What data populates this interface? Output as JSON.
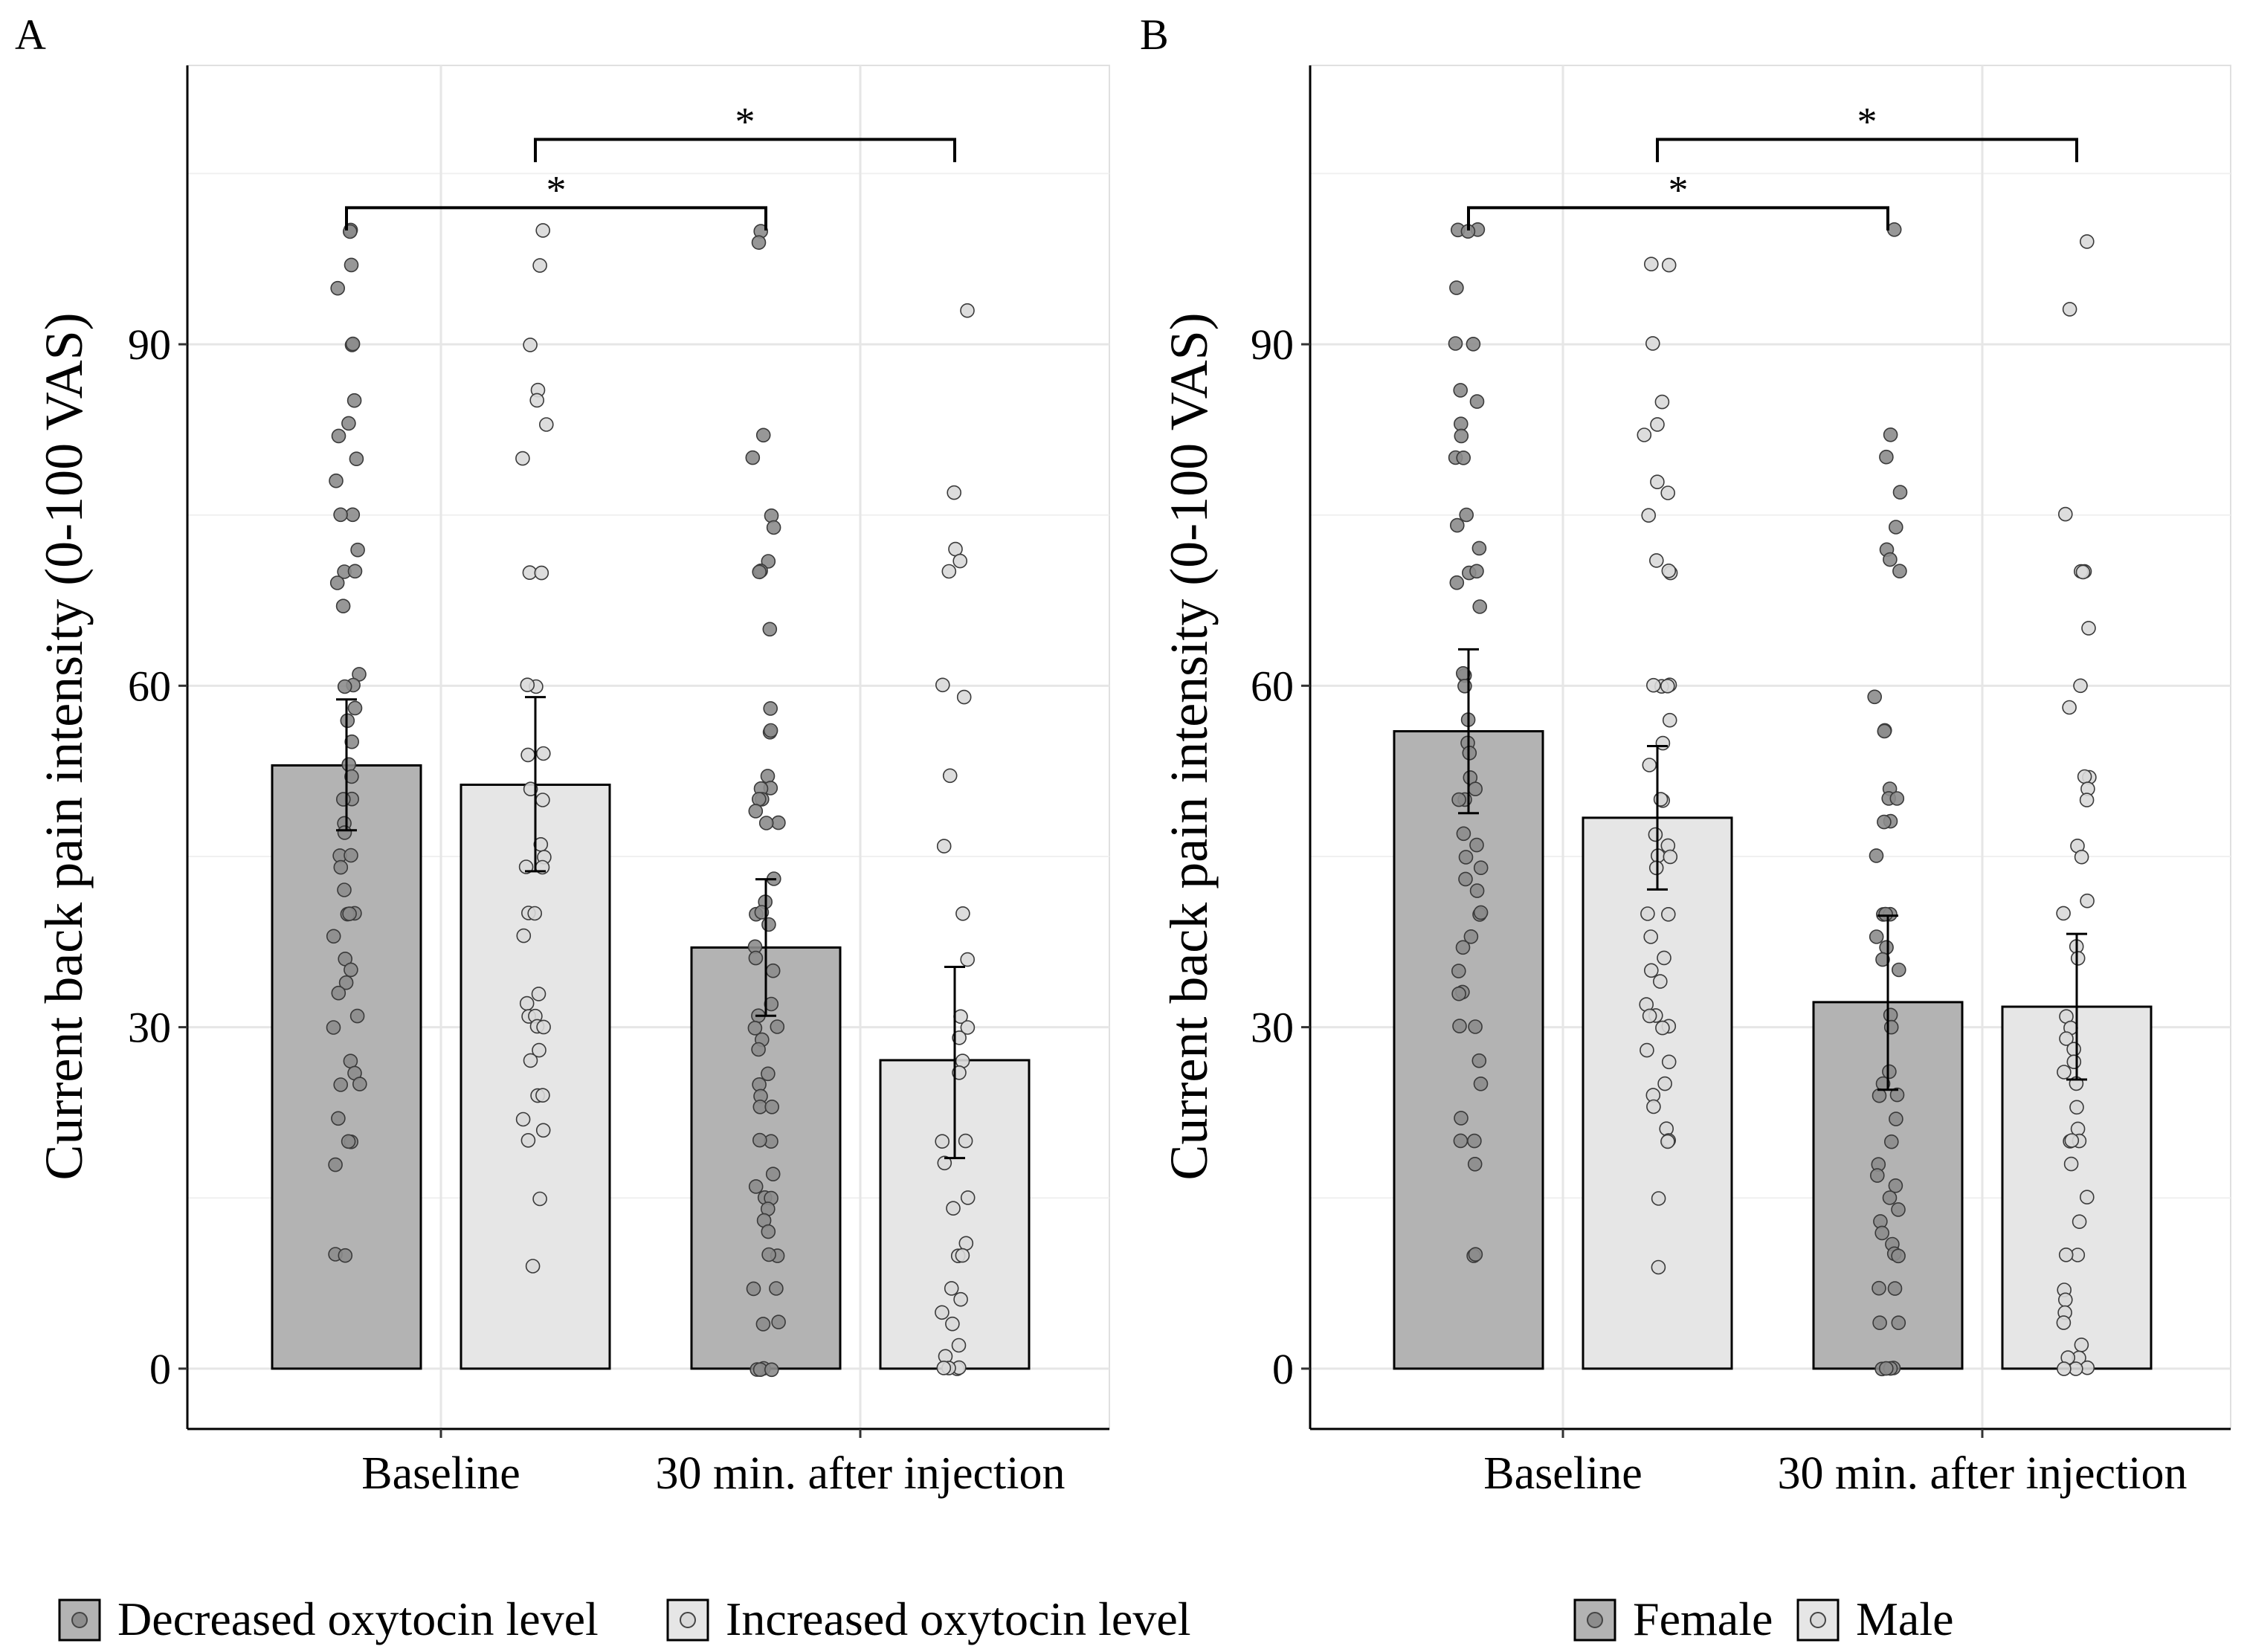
{
  "figure": {
    "legend_a": [
      {
        "label": "Decreased oxytocin level",
        "color": "#b3b3b3"
      },
      {
        "label": "Increased oxytocin level",
        "color": "#e6e6e6"
      }
    ],
    "legend_b": [
      {
        "label": "Female",
        "color": "#b3b3b3"
      },
      {
        "label": "Male",
        "color": "#e6e6e6"
      }
    ]
  },
  "chart_data": [
    {
      "panel": "A",
      "type": "bar",
      "ylabel": "Current back pain intensity (0-100 VAS)",
      "xlabel": "",
      "categories": [
        "Baseline",
        "30 min. after injection"
      ],
      "yticks": [
        0,
        30,
        60,
        90
      ],
      "ylim": [
        -5.3,
        114.5
      ],
      "grid": true,
      "legend_position": "bottom",
      "significance": [
        {
          "from": "Baseline|0",
          "to": "30 min. after injection|0",
          "label": "*",
          "y": 102
        },
        {
          "from": "Baseline|1",
          "to": "30 min. after injection|1",
          "label": "*",
          "y": 108
        }
      ],
      "series": [
        {
          "name": "Decreased oxytocin level",
          "color": "#b3b3b3",
          "point_color": "#8c8c8c",
          "values": [
            53,
            37
          ],
          "error": [
            [
              47.3,
              58.8
            ],
            [
              31.0,
              43.0
            ]
          ],
          "points": [
            [
              100,
              100,
              97,
              95,
              90,
              90,
              85,
              83,
              82,
              80,
              78,
              75,
              75,
              72,
              70,
              70,
              69,
              67,
              61,
              60,
              60,
              58,
              57,
              55,
              53,
              52,
              50,
              50,
              48,
              47,
              45,
              45,
              44,
              42,
              40,
              40,
              40,
              38,
              36,
              35,
              34,
              33,
              31,
              30,
              27,
              26,
              25,
              25,
              22,
              20,
              20,
              18,
              10,
              10
            ],
            [
              100,
              99,
              82,
              80,
              75,
              74,
              71,
              70,
              70,
              65,
              58,
              56,
              56,
              52,
              51,
              51,
              50,
              50,
              49,
              48,
              48,
              43,
              41,
              40,
              40,
              39,
              37,
              36,
              35,
              32,
              31,
              30,
              30,
              29,
              28,
              26,
              25,
              24,
              23,
              23,
              20,
              20,
              17,
              16,
              15,
              15,
              14,
              13,
              12,
              10,
              10,
              7,
              7,
              4,
              4,
              0,
              0,
              0,
              0
            ]
          ]
        },
        {
          "name": "Increased oxytocin level",
          "color": "#e6e6e6",
          "point_color": "#d9d9d9",
          "values": [
            51.3,
            27.1
          ],
          "error": [
            [
              43.7,
              59.0
            ],
            [
              18.5,
              35.3
            ]
          ],
          "points": [
            [
              100,
              97,
              90,
              86,
              85,
              83,
              80,
              70,
              70,
              60,
              60,
              54,
              54,
              51,
              50,
              46,
              45,
              44,
              44,
              40,
              40,
              38,
              33,
              32,
              31,
              31,
              30,
              30,
              28,
              27,
              24,
              24,
              22,
              21,
              20,
              15,
              9
            ],
            [
              93,
              77,
              72,
              71,
              70,
              60,
              59,
              52,
              46,
              40,
              36,
              31,
              30,
              29,
              27,
              26,
              20,
              20,
              18,
              15,
              14,
              11,
              10,
              10,
              7,
              6,
              5,
              4,
              2,
              1,
              0,
              0,
              0,
              0
            ]
          ]
        }
      ]
    },
    {
      "panel": "B",
      "type": "bar",
      "ylabel": "Current back pain intensity (0-100 VAS)",
      "xlabel": "",
      "categories": [
        "Baseline",
        "30 min. after injection"
      ],
      "yticks": [
        0,
        30,
        60,
        90
      ],
      "ylim": [
        -5.3,
        114.5
      ],
      "grid": true,
      "legend_position": "bottom",
      "significance": [
        {
          "from": "Baseline|0",
          "to": "30 min. after injection|0",
          "label": "*",
          "y": 102
        },
        {
          "from": "Baseline|1",
          "to": "30 min. after injection|1",
          "label": "*",
          "y": 108
        }
      ],
      "series": [
        {
          "name": "Female",
          "color": "#b3b3b3",
          "point_color": "#8c8c8c",
          "values": [
            56.0,
            32.2
          ],
          "error": [
            [
              48.8,
              63.2
            ],
            [
              24.5,
              39.8
            ]
          ],
          "points": [
            [
              100,
              100,
              100,
              95,
              90,
              90,
              86,
              85,
              83,
              82,
              80,
              80,
              75,
              74,
              72,
              70,
              70,
              69,
              67,
              61,
              61,
              60,
              57,
              55,
              54,
              52,
              51,
              50,
              50,
              47,
              46,
              45,
              44,
              43,
              42,
              40,
              40,
              38,
              37,
              35,
              33,
              33,
              30,
              30,
              27,
              25,
              22,
              20,
              20,
              18,
              10,
              10
            ],
            [
              100,
              82,
              80,
              77,
              74,
              72,
              71,
              70,
              59,
              56,
              56,
              51,
              50,
              50,
              48,
              48,
              45,
              40,
              40,
              40,
              38,
              37,
              36,
              35,
              31,
              30,
              26,
              25,
              24,
              24,
              22,
              20,
              18,
              17,
              16,
              15,
              14,
              13,
              12,
              11,
              10,
              10,
              7,
              7,
              4,
              4,
              0,
              0,
              0,
              0
            ]
          ]
        },
        {
          "name": "Male",
          "color": "#e6e6e6",
          "point_color": "#d9d9d9",
          "values": [
            48.4,
            31.8
          ],
          "error": [
            [
              42.1,
              54.7
            ],
            [
              25.4,
              38.2
            ]
          ],
          "points": [
            [
              97,
              97,
              90,
              85,
              83,
              82,
              78,
              77,
              75,
              71,
              70,
              70,
              60,
              60,
              60,
              60,
              57,
              55,
              53,
              50,
              50,
              47,
              46,
              45,
              45,
              44,
              40,
              40,
              38,
              36,
              35,
              34,
              32,
              31,
              31,
              30,
              30,
              28,
              27,
              25,
              24,
              23,
              21,
              20,
              20,
              15,
              9
            ],
            [
              99,
              93,
              75,
              70,
              70,
              70,
              70,
              65,
              60,
              58,
              52,
              52,
              51,
              50,
              46,
              45,
              41,
              40,
              37,
              36,
              31,
              30,
              29,
              28,
              27,
              26,
              25,
              23,
              21,
              20,
              20,
              20,
              18,
              15,
              13,
              10,
              10,
              7,
              6,
              5,
              4,
              2,
              1,
              1,
              0,
              0,
              0
            ]
          ]
        }
      ]
    }
  ]
}
